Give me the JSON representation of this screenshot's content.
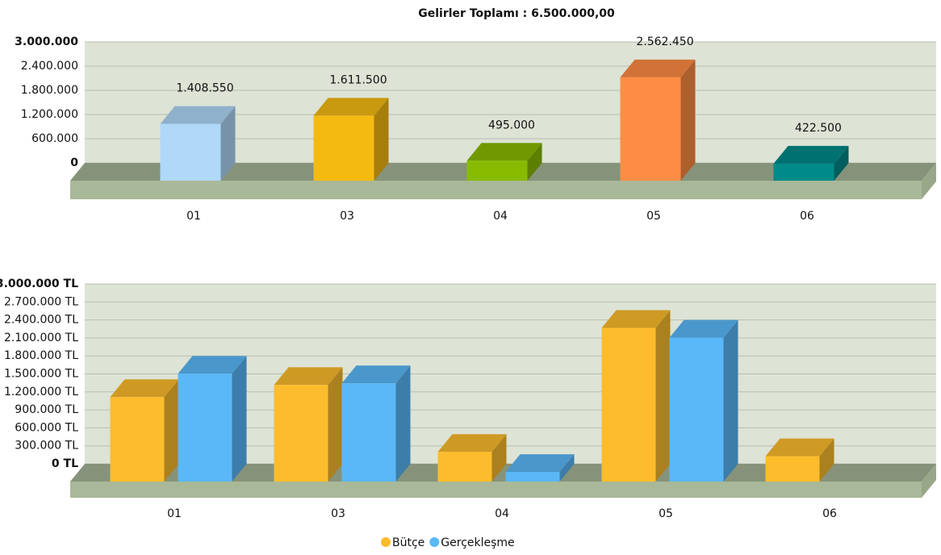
{
  "chart_data": [
    {
      "type": "bar",
      "title": "Gelirler Toplamı : 6.500.000,00",
      "categories": [
        "01",
        "03",
        "04",
        "05",
        "06"
      ],
      "values": [
        1408550,
        1611500,
        495000,
        2562450,
        422500
      ],
      "value_labels": [
        "1.408.550",
        "1.611.500",
        "495.000",
        "2.562.450",
        "422.500"
      ],
      "colors": [
        "#b0d8f8",
        "#f5ba12",
        "#88bb00",
        "#ff8c44",
        "#008a8a"
      ],
      "ylim": [
        0,
        3000000
      ],
      "yticks": [
        {
          "value": 0,
          "label": "0"
        },
        {
          "value": 600000,
          "label": "600.000"
        },
        {
          "value": 1200000,
          "label": "1.200.000"
        },
        {
          "value": 1800000,
          "label": "1.800.000"
        },
        {
          "value": 2400000,
          "label": "2.400.000"
        },
        {
          "value": 3000000,
          "label": "3.000.000"
        }
      ],
      "grid": true
    },
    {
      "type": "bar",
      "categories": [
        "01",
        "03",
        "04",
        "05",
        "06"
      ],
      "series": [
        {
          "name": "Bütçe",
          "color": "#fcbc2c",
          "values": [
            1408550,
            1611500,
            495000,
            2562450,
            422500
          ]
        },
        {
          "name": "Gerçekleşme",
          "color": "#5ab8f8",
          "values": [
            1800000,
            1640000,
            160000,
            2400000,
            null
          ]
        }
      ],
      "ylim": [
        0,
        3000000
      ],
      "yticks": [
        {
          "value": 0,
          "label": "0 TL"
        },
        {
          "value": 300000,
          "label": "300.000 TL"
        },
        {
          "value": 600000,
          "label": "600.000 TL"
        },
        {
          "value": 900000,
          "label": "900.000 TL"
        },
        {
          "value": 1200000,
          "label": "1.200.000 TL"
        },
        {
          "value": 1500000,
          "label": "1.500.000 TL"
        },
        {
          "value": 1800000,
          "label": "1.800.000 TL"
        },
        {
          "value": 2100000,
          "label": "2.100.000 TL"
        },
        {
          "value": 2400000,
          "label": "2.400.000 TL"
        },
        {
          "value": 2700000,
          "label": "2.700.000 TL"
        },
        {
          "value": 3000000,
          "label": "3.000.000 TL"
        }
      ],
      "grid": true,
      "legend": "bottom"
    }
  ]
}
